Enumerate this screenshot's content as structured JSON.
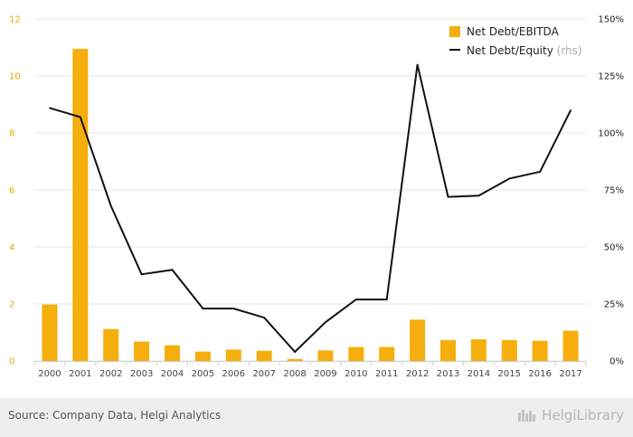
{
  "chart_data": {
    "type": "bar+line",
    "categories": [
      "2000",
      "2001",
      "2002",
      "2003",
      "2004",
      "2005",
      "2006",
      "2007",
      "2008",
      "2009",
      "2010",
      "2011",
      "2012",
      "2013",
      "2014",
      "2015",
      "2016",
      "2017"
    ],
    "series": [
      {
        "name": "Net Debt/EBITDA",
        "type": "bar",
        "axis": "left",
        "color": "#f5ae0c",
        "values": [
          1.98,
          10.95,
          1.12,
          0.68,
          0.55,
          0.33,
          0.4,
          0.36,
          0.07,
          0.37,
          0.49,
          0.49,
          1.45,
          0.73,
          0.76,
          0.73,
          0.71,
          1.06
        ]
      },
      {
        "name": "Net Debt/Equity",
        "rhs_label": "(rhs)",
        "type": "line",
        "axis": "right",
        "color": "#111111",
        "values": [
          111,
          107,
          68,
          38,
          40,
          23,
          23,
          19,
          4,
          17,
          27,
          27,
          130,
          72,
          72.5,
          80,
          83,
          110
        ]
      }
    ],
    "left_axis": {
      "min": 0,
      "max": 12,
      "ticks": [
        "0",
        "2",
        "4",
        "6",
        "8",
        "10",
        "12"
      ]
    },
    "right_axis": {
      "min": 0,
      "max": 150,
      "ticks": [
        "0%",
        "25%",
        "50%",
        "75%",
        "100%",
        "125%",
        "150%"
      ]
    },
    "grid": true,
    "legend_position": "top-right"
  },
  "footer": {
    "source": "Source: Company Data, Helgi Analytics",
    "brand": "HelgiLibrary"
  },
  "colors": {
    "bar": "#f5ae0c",
    "line": "#111111",
    "grid": "#e6e6e6",
    "footer_bg": "#eeeeee"
  }
}
